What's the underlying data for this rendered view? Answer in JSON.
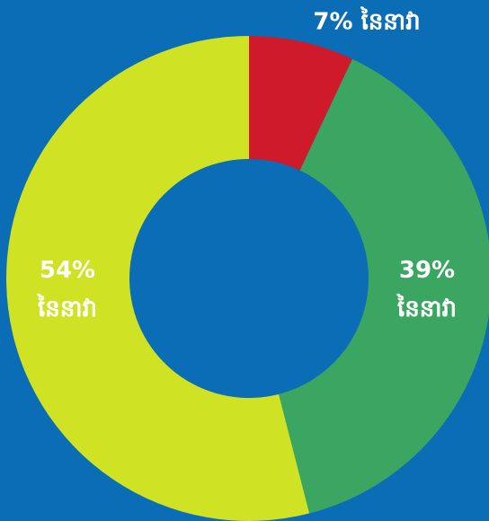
{
  "chart_data": {
    "type": "donut",
    "values": [
      7,
      39,
      54
    ],
    "value_labels": [
      "7% នៃនាវា",
      "39% នៃនាវា",
      "54% នៃនាវា"
    ],
    "colors": [
      "#cf1a2b",
      "#3aa661",
      "#cfe223"
    ]
  }
}
